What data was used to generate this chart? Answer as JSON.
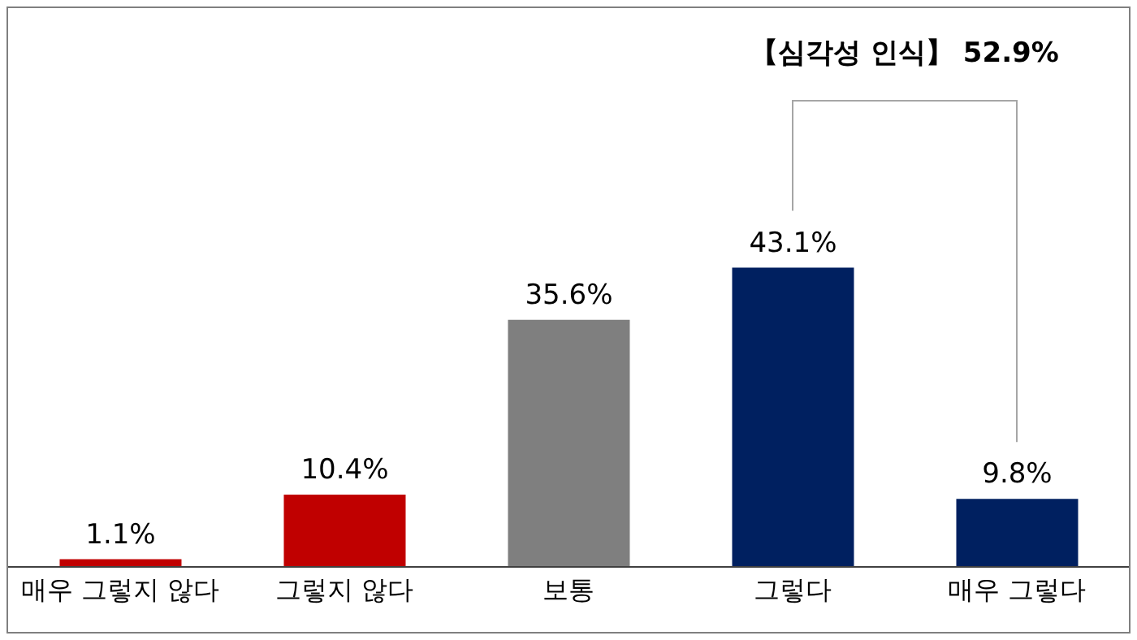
{
  "chart_data": {
    "type": "bar",
    "categories": [
      "매우 그렇지 않다",
      "그렇지 않다",
      "보통",
      "그렇다",
      "매우 그렇다"
    ],
    "values": [
      1.1,
      10.4,
      35.6,
      43.1,
      9.8
    ],
    "colors": [
      "#c00000",
      "#c00000",
      "#7f7f7f",
      "#002060",
      "#002060"
    ],
    "value_labels": [
      "1.1%",
      "10.4%",
      "35.6%",
      "43.1%",
      "9.8%"
    ],
    "annotations": [
      "【심각성 인식】 52.9%"
    ]
  }
}
